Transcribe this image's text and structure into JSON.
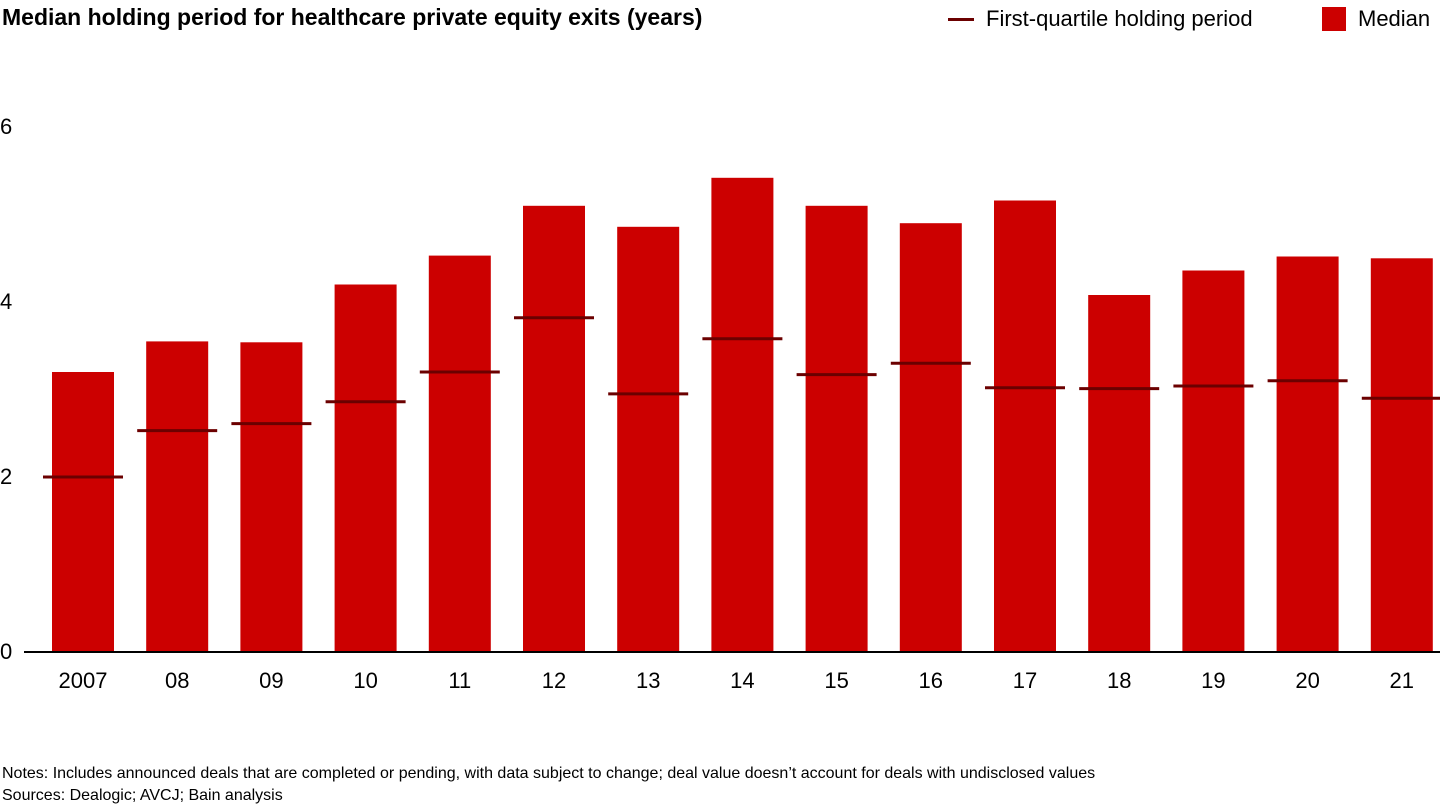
{
  "chart_data": {
    "type": "bar",
    "title": "Median holding period for healthcare private equity exits (years)",
    "categories": [
      "2007",
      "08",
      "09",
      "10",
      "11",
      "12",
      "13",
      "14",
      "15",
      "16",
      "17",
      "18",
      "19",
      "20",
      "21"
    ],
    "series": [
      {
        "name": "Median",
        "type": "bar",
        "values": [
          3.2,
          3.55,
          3.54,
          4.2,
          4.53,
          5.1,
          4.86,
          5.42,
          5.1,
          4.9,
          5.16,
          4.08,
          4.36,
          4.52,
          4.5
        ]
      },
      {
        "name": "First-quartile holding period",
        "type": "marker",
        "values": [
          2.0,
          2.53,
          2.61,
          2.86,
          3.2,
          3.82,
          2.95,
          3.58,
          3.17,
          3.3,
          3.02,
          3.01,
          3.04,
          3.1,
          2.9
        ]
      }
    ],
    "y_ticks": [
      "0",
      "2",
      "4",
      "6"
    ],
    "ylim": [
      0,
      6
    ],
    "grid": false,
    "legend_position": "top-right",
    "colors": {
      "median": "#cc0000",
      "quartile": "#6b0000",
      "axis": "#000000"
    }
  },
  "notes": "Notes: Includes announced deals that are completed or pending, with data subject to change; deal value doesn’t account for deals with undisclosed values",
  "sources": "Sources: Dealogic; AVCJ; Bain analysis"
}
